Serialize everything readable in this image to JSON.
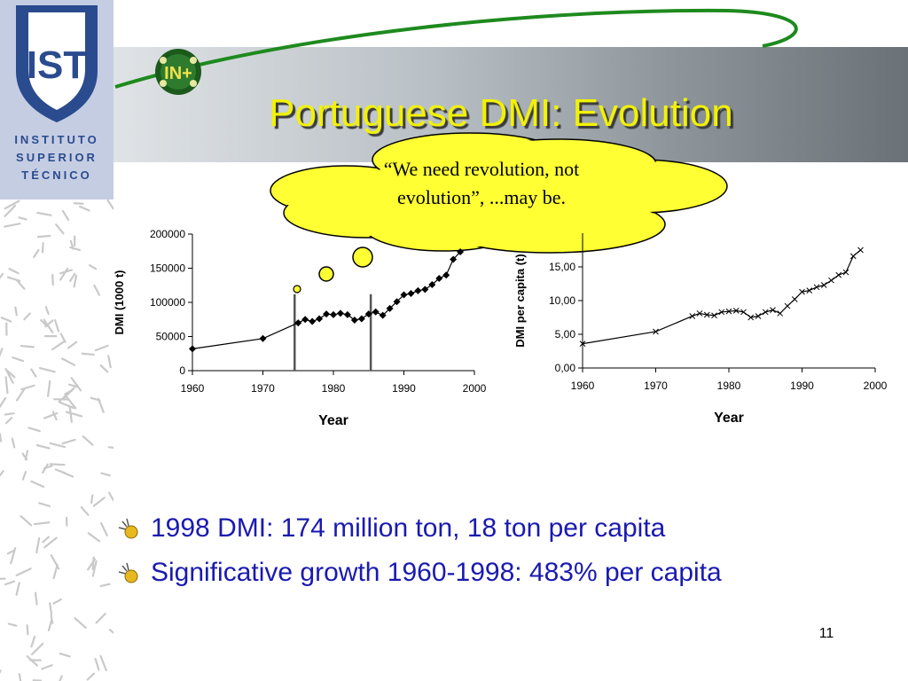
{
  "logo": {
    "lines": [
      "INSTITUTO",
      "SUPERIOR",
      "TÉCNICO"
    ],
    "monogram": "IST"
  },
  "badge": {
    "text": "IN+"
  },
  "title": "Portuguese DMI: Evolution",
  "cloud": {
    "line1": "“We need revolution, not",
    "line2": "evolution”, ...may be."
  },
  "bullets": [
    {
      "text": "1998 DMI: 174 million ton, 18 ton per capita",
      "icon": "bullet-flower-icon"
    },
    {
      "text": "Significative growth 1960-1998: 483% per capita",
      "icon": "bullet-flower-icon"
    }
  ],
  "page_number": "11",
  "colors": {
    "title": "#f2f200",
    "bullet_text": "#1a1ab0",
    "cloud": "#ffff33",
    "logo_blue": "#2a4b8e"
  },
  "chart_data": [
    {
      "type": "line",
      "xlabel": "Year",
      "ylabel": "DMI (1000 t)",
      "xlim": [
        1960,
        2000
      ],
      "ylim": [
        0,
        200000
      ],
      "x_ticks": [
        "1960",
        "1970",
        "1980",
        "1990",
        "2000"
      ],
      "y_ticks": [
        "0",
        "50000",
        "100000",
        "150000",
        "200000"
      ],
      "vertical_markers": [
        1974.5,
        1985.3
      ],
      "series": [
        {
          "x": [
            1960,
            1970,
            1975,
            1976,
            1977,
            1978,
            1979,
            1980,
            1981,
            1982,
            1983,
            1984,
            1985,
            1986,
            1987,
            1988,
            1989,
            1990,
            1991,
            1992,
            1993,
            1994,
            1995,
            1996,
            1997,
            1998
          ],
          "y": [
            32000,
            47000,
            70000,
            75000,
            72000,
            76000,
            83000,
            82000,
            84000,
            82000,
            74000,
            76000,
            83000,
            86000,
            81000,
            91000,
            101000,
            111000,
            113000,
            117000,
            119000,
            126000,
            135000,
            140000,
            163000,
            174000
          ]
        }
      ]
    },
    {
      "type": "line",
      "xlabel": "Year",
      "ylabel": "DMI per capita (t)",
      "xlim": [
        1960,
        2000
      ],
      "ylim": [
        0,
        20
      ],
      "x_ticks": [
        "1960",
        "1970",
        "1980",
        "1990",
        "2000"
      ],
      "y_ticks": [
        "0,00",
        "5,00",
        "10,00",
        "15,00"
      ],
      "series": [
        {
          "x": [
            1960,
            1970,
            1975,
            1976,
            1977,
            1978,
            1979,
            1980,
            1981,
            1982,
            1983,
            1984,
            1985,
            1986,
            1987,
            1988,
            1989,
            1990,
            1991,
            1992,
            1993,
            1994,
            1995,
            1996,
            1997,
            1998
          ],
          "y": [
            3.6,
            5.4,
            7.7,
            8.1,
            7.9,
            7.8,
            8.3,
            8.4,
            8.5,
            8.3,
            7.5,
            7.7,
            8.3,
            8.6,
            8.1,
            9.2,
            10.2,
            11.3,
            11.5,
            12.0,
            12.3,
            13.0,
            13.8,
            14.2,
            16.6,
            17.5
          ]
        }
      ]
    }
  ]
}
